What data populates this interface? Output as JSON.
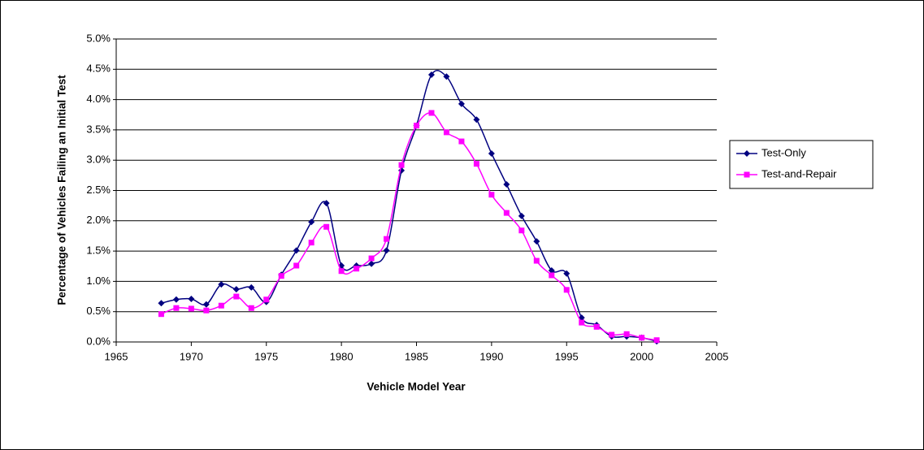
{
  "chart_data": {
    "type": "line",
    "smooth": true,
    "x_label": "Vehicle Model Year",
    "y_label": "Percentage of Vehicles Failing an Initial Test",
    "x": [
      1968,
      1969,
      1970,
      1971,
      1972,
      1973,
      1974,
      1975,
      1976,
      1977,
      1978,
      1979,
      1980,
      1981,
      1982,
      1983,
      1984,
      1985,
      1986,
      1987,
      1988,
      1989,
      1990,
      1991,
      1992,
      1993,
      1994,
      1995,
      1996,
      1997,
      1998,
      1999,
      2000,
      2001
    ],
    "series": [
      {
        "name": "Test-Only",
        "color": "#000080",
        "marker": "diamond",
        "values": [
          0.64,
          0.7,
          0.71,
          0.62,
          0.95,
          0.87,
          0.9,
          0.66,
          1.11,
          1.51,
          1.98,
          2.29,
          1.26,
          1.26,
          1.29,
          1.51,
          2.83,
          3.57,
          4.41,
          4.38,
          3.93,
          3.67,
          3.11,
          2.6,
          2.08,
          1.66,
          1.18,
          1.13,
          0.4,
          0.28,
          0.09,
          0.09,
          0.07,
          0.01
        ]
      },
      {
        "name": "Test-and-Repair",
        "color": "#ff00ff",
        "marker": "square",
        "values": [
          0.46,
          0.56,
          0.55,
          0.52,
          0.6,
          0.75,
          0.56,
          0.7,
          1.09,
          1.26,
          1.64,
          1.9,
          1.17,
          1.21,
          1.38,
          1.7,
          2.92,
          3.57,
          3.78,
          3.46,
          3.31,
          2.94,
          2.43,
          2.13,
          1.84,
          1.34,
          1.1,
          0.86,
          0.32,
          0.25,
          0.12,
          0.13,
          0.07,
          0.03
        ]
      }
    ],
    "xlim": [
      1965,
      2005
    ],
    "xticks": [
      1965,
      1970,
      1975,
      1980,
      1985,
      1990,
      1995,
      2000,
      2005
    ],
    "ylim": [
      0,
      5
    ],
    "yticks": [
      {
        "value": 0,
        "label": "0.0%"
      },
      {
        "value": 0.5,
        "label": "0.5%"
      },
      {
        "value": 1,
        "label": "1.0%"
      },
      {
        "value": 1.5,
        "label": "1.5%"
      },
      {
        "value": 2,
        "label": "2.0%"
      },
      {
        "value": 2.5,
        "label": "2.5%"
      },
      {
        "value": 3,
        "label": "3.0%"
      },
      {
        "value": 3.5,
        "label": "3.5%"
      },
      {
        "value": 4,
        "label": "4.0%"
      },
      {
        "value": 4.5,
        "label": "4.5%"
      },
      {
        "value": 5,
        "label": "5.0%"
      }
    ],
    "grid": true,
    "legend": "right"
  }
}
